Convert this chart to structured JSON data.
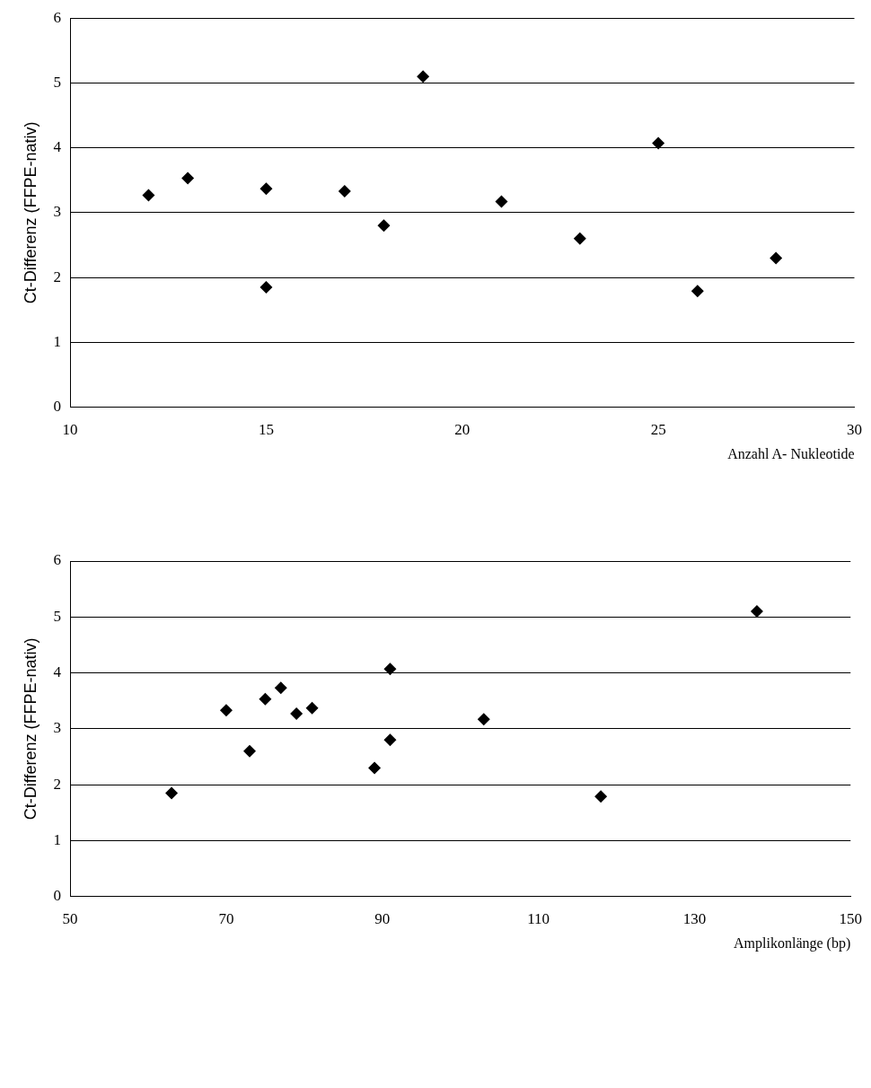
{
  "chart_data": [
    {
      "type": "scatter",
      "xlabel": "Anzahl A- Nukleotide",
      "ylabel": "Ct-Differenz (FFPE-nativ)",
      "x": [
        12,
        13,
        15,
        15,
        17,
        18,
        19,
        21,
        23,
        25,
        26,
        28
      ],
      "values": [
        3.27,
        3.53,
        3.37,
        1.85,
        3.33,
        2.8,
        5.1,
        3.17,
        2.6,
        4.07,
        1.79,
        2.3
      ],
      "color": "#000000",
      "marker": "diamond",
      "xlim": [
        10,
        30
      ],
      "xticks": [
        10,
        15,
        20,
        25,
        30
      ],
      "ylim": [
        0,
        6
      ],
      "yticks": [
        0,
        1,
        2,
        3,
        4,
        5,
        6
      ],
      "grid": "y",
      "legend": false
    },
    {
      "type": "scatter",
      "xlabel": "Amplikonlänge (bp)",
      "ylabel": "Ct-Differenz (FFPE-nativ)",
      "x": [
        63,
        70,
        73,
        75,
        77,
        79,
        81,
        89,
        91,
        91,
        103,
        118,
        138
      ],
      "values": [
        1.85,
        3.33,
        2.6,
        3.53,
        3.73,
        3.27,
        3.37,
        2.3,
        2.8,
        4.07,
        3.17,
        1.79,
        5.1
      ],
      "color": "#000000",
      "marker": "diamond",
      "xlim": [
        50,
        150
      ],
      "xticks": [
        50,
        70,
        90,
        110,
        130,
        150
      ],
      "ylim": [
        0,
        6
      ],
      "yticks": [
        0,
        1,
        2,
        3,
        4,
        5,
        6
      ],
      "grid": "y",
      "legend": false
    }
  ]
}
